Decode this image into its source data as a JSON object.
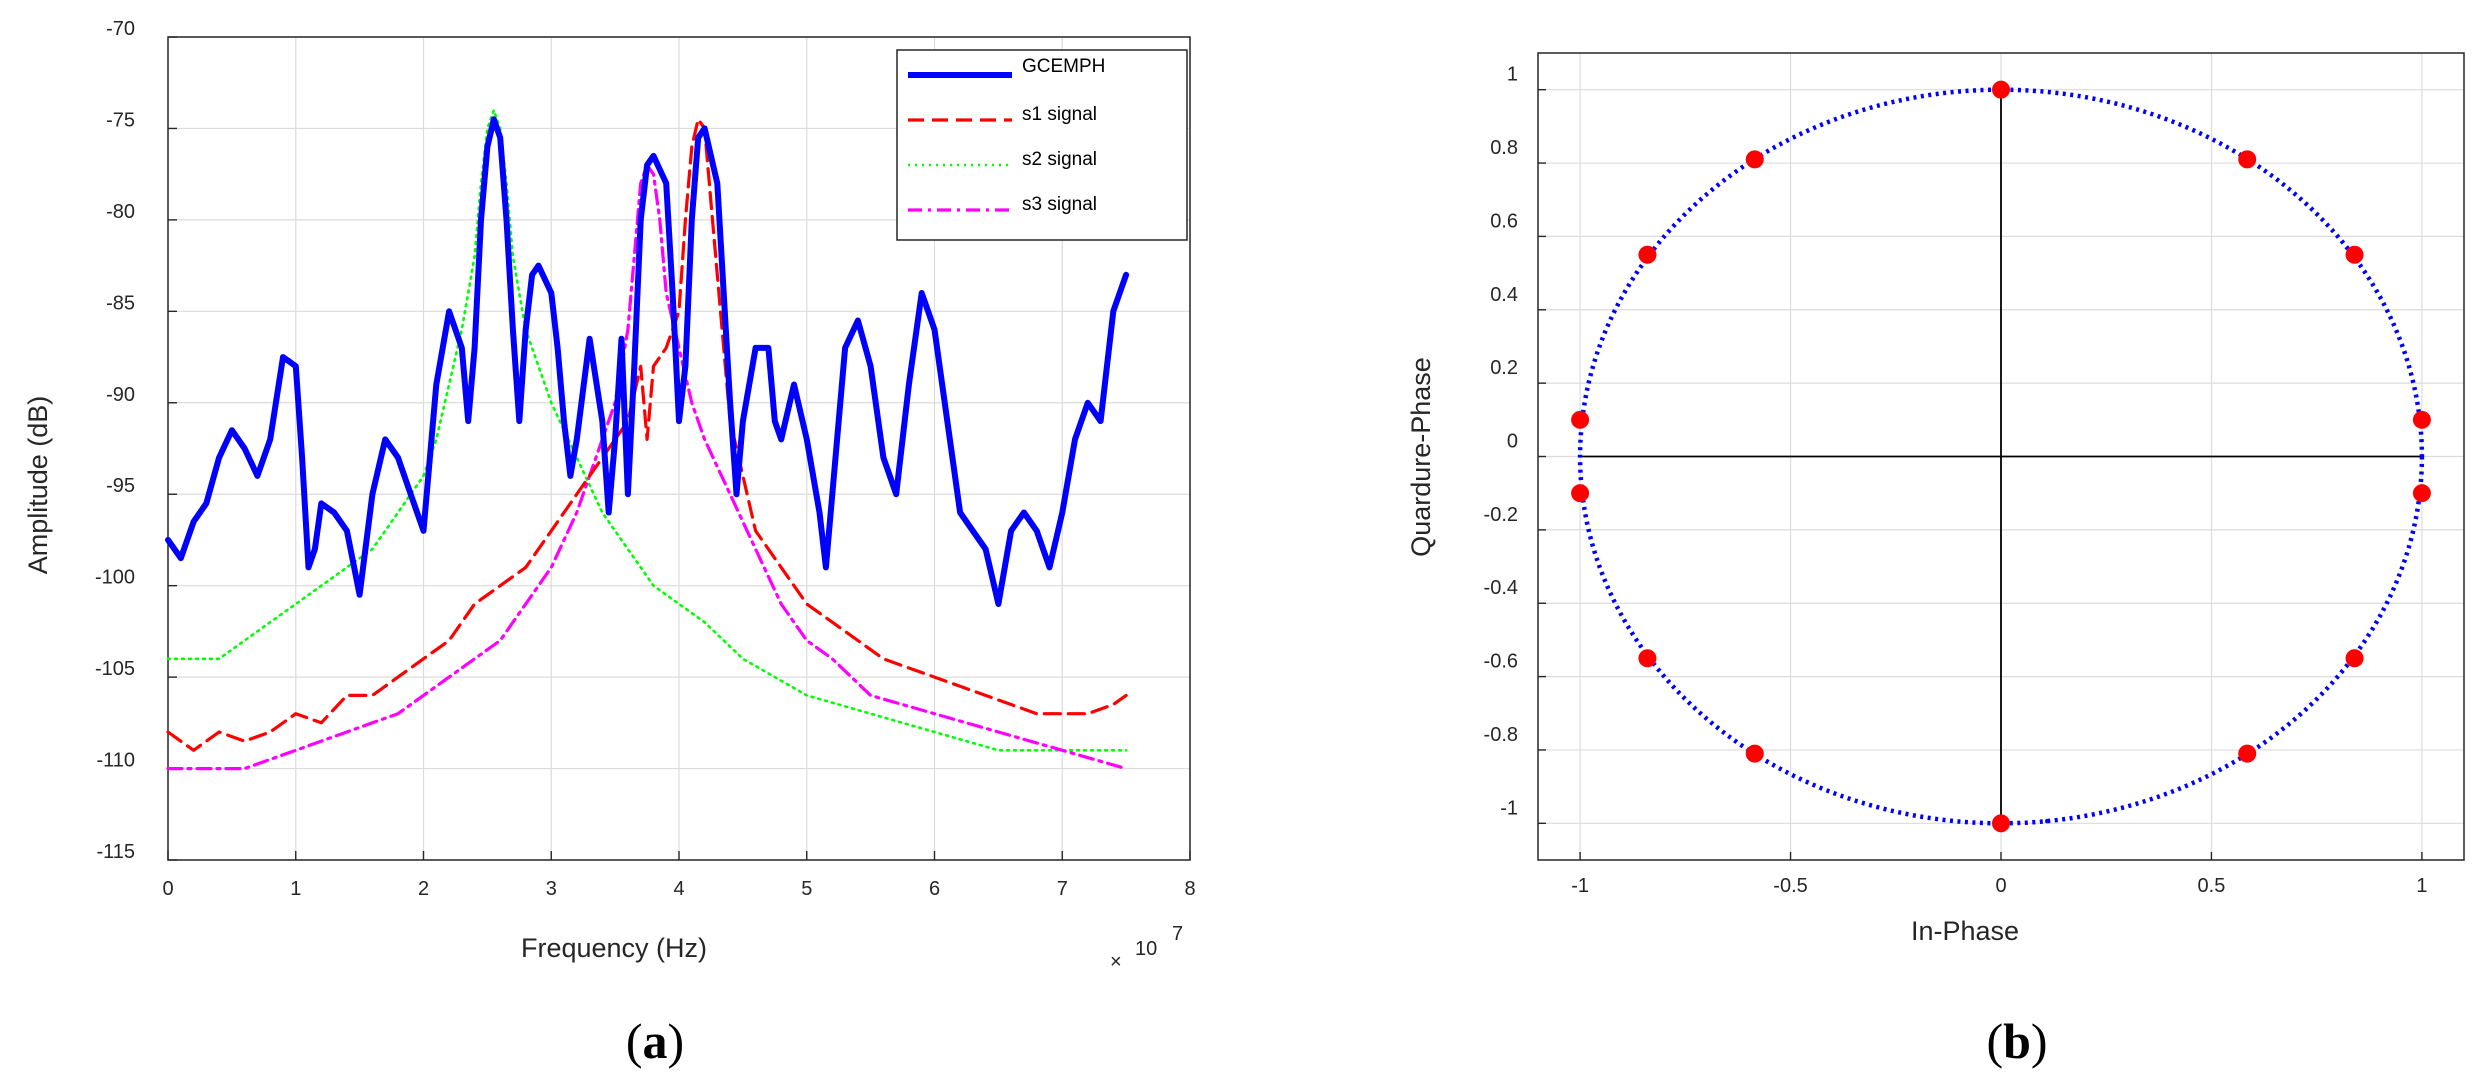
{
  "chart_data": [
    {
      "type": "line",
      "caption_label": "a",
      "xlabel": "Frequency (Hz)",
      "ylabel": "Amplitude (dB)",
      "x_multiplier_base": "10",
      "x_multiplier_exp": "7",
      "xlim": [
        0,
        8
      ],
      "ylim": [
        -115,
        -70
      ],
      "xticks": [
        "0",
        "1",
        "2",
        "3",
        "4",
        "5",
        "6",
        "7",
        "8"
      ],
      "yticks": [
        "-70",
        "-75",
        "-80",
        "-85",
        "-90",
        "-95",
        "-100",
        "-105",
        "-110",
        "-115"
      ],
      "grid": true,
      "legend_position": "top-right",
      "series": [
        {
          "name": "GCEMPH",
          "color": "#0000ff",
          "style": "solid",
          "points": [
            [
              0.0,
              -97.5
            ],
            [
              0.1,
              -98.5
            ],
            [
              0.2,
              -96.5
            ],
            [
              0.3,
              -95.5
            ],
            [
              0.4,
              -93
            ],
            [
              0.5,
              -91.5
            ],
            [
              0.6,
              -92.5
            ],
            [
              0.7,
              -94
            ],
            [
              0.8,
              -92
            ],
            [
              0.9,
              -87.5
            ],
            [
              1.0,
              -88
            ],
            [
              1.05,
              -93
            ],
            [
              1.1,
              -99
            ],
            [
              1.15,
              -98
            ],
            [
              1.2,
              -95.5
            ],
            [
              1.3,
              -96
            ],
            [
              1.4,
              -97
            ],
            [
              1.5,
              -100.5
            ],
            [
              1.6,
              -95
            ],
            [
              1.7,
              -92
            ],
            [
              1.8,
              -93
            ],
            [
              1.9,
              -95
            ],
            [
              2.0,
              -97
            ],
            [
              2.05,
              -93
            ],
            [
              2.1,
              -89
            ],
            [
              2.2,
              -85
            ],
            [
              2.3,
              -87
            ],
            [
              2.35,
              -91
            ],
            [
              2.4,
              -87
            ],
            [
              2.45,
              -80
            ],
            [
              2.5,
              -76
            ],
            [
              2.55,
              -74.5
            ],
            [
              2.6,
              -75.5
            ],
            [
              2.65,
              -80
            ],
            [
              2.7,
              -86
            ],
            [
              2.75,
              -91
            ],
            [
              2.8,
              -86
            ],
            [
              2.85,
              -83
            ],
            [
              2.9,
              -82.5
            ],
            [
              3.0,
              -84
            ],
            [
              3.05,
              -87
            ],
            [
              3.1,
              -91
            ],
            [
              3.15,
              -94
            ],
            [
              3.2,
              -92
            ],
            [
              3.3,
              -86.5
            ],
            [
              3.4,
              -91
            ],
            [
              3.45,
              -96
            ],
            [
              3.5,
              -92
            ],
            [
              3.55,
              -86.5
            ],
            [
              3.6,
              -95
            ],
            [
              3.65,
              -88
            ],
            [
              3.7,
              -80
            ],
            [
              3.75,
              -77
            ],
            [
              3.8,
              -76.5
            ],
            [
              3.9,
              -78
            ],
            [
              3.95,
              -84
            ],
            [
              4.0,
              -91
            ],
            [
              4.05,
              -88
            ],
            [
              4.1,
              -80
            ],
            [
              4.15,
              -75.5
            ],
            [
              4.2,
              -75
            ],
            [
              4.3,
              -78
            ],
            [
              4.35,
              -84
            ],
            [
              4.4,
              -90
            ],
            [
              4.45,
              -95
            ],
            [
              4.5,
              -91
            ],
            [
              4.6,
              -87
            ],
            [
              4.7,
              -87
            ],
            [
              4.75,
              -91
            ],
            [
              4.8,
              -92
            ],
            [
              4.9,
              -89
            ],
            [
              5.0,
              -92
            ],
            [
              5.1,
              -96
            ],
            [
              5.15,
              -99
            ],
            [
              5.2,
              -95
            ],
            [
              5.3,
              -87
            ],
            [
              5.4,
              -85.5
            ],
            [
              5.5,
              -88
            ],
            [
              5.6,
              -93
            ],
            [
              5.7,
              -95
            ],
            [
              5.8,
              -89
            ],
            [
              5.9,
              -84
            ],
            [
              6.0,
              -86
            ],
            [
              6.1,
              -91
            ],
            [
              6.2,
              -96
            ],
            [
              6.3,
              -97
            ],
            [
              6.4,
              -98
            ],
            [
              6.5,
              -101
            ],
            [
              6.6,
              -97
            ],
            [
              6.7,
              -96
            ],
            [
              6.8,
              -97
            ],
            [
              6.9,
              -99
            ],
            [
              7.0,
              -96
            ],
            [
              7.1,
              -92
            ],
            [
              7.2,
              -90
            ],
            [
              7.3,
              -91
            ],
            [
              7.4,
              -85
            ],
            [
              7.5,
              -83
            ]
          ]
        },
        {
          "name": "s1 signal",
          "color": "#ff0000",
          "style": "dashed",
          "points": [
            [
              0.0,
              -108
            ],
            [
              0.2,
              -109
            ],
            [
              0.4,
              -108
            ],
            [
              0.6,
              -108.5
            ],
            [
              0.8,
              -108
            ],
            [
              1.0,
              -107
            ],
            [
              1.2,
              -107.5
            ],
            [
              1.4,
              -106
            ],
            [
              1.6,
              -106
            ],
            [
              1.8,
              -105
            ],
            [
              2.0,
              -104
            ],
            [
              2.2,
              -103
            ],
            [
              2.4,
              -101
            ],
            [
              2.6,
              -100
            ],
            [
              2.8,
              -99
            ],
            [
              3.0,
              -97
            ],
            [
              3.2,
              -95
            ],
            [
              3.3,
              -94
            ],
            [
              3.5,
              -92
            ],
            [
              3.6,
              -91
            ],
            [
              3.7,
              -88
            ],
            [
              3.75,
              -92
            ],
            [
              3.8,
              -88
            ],
            [
              3.9,
              -87
            ],
            [
              4.0,
              -85
            ],
            [
              4.05,
              -80
            ],
            [
              4.1,
              -76
            ],
            [
              4.15,
              -74.5
            ],
            [
              4.2,
              -75
            ],
            [
              4.25,
              -79
            ],
            [
              4.3,
              -83
            ],
            [
              4.35,
              -87
            ],
            [
              4.4,
              -91
            ],
            [
              4.5,
              -94
            ],
            [
              4.6,
              -97
            ],
            [
              4.8,
              -99
            ],
            [
              5.0,
              -101
            ],
            [
              5.2,
              -102
            ],
            [
              5.4,
              -103
            ],
            [
              5.6,
              -104
            ],
            [
              5.8,
              -104.5
            ],
            [
              6.0,
              -105
            ],
            [
              6.2,
              -105.5
            ],
            [
              6.4,
              -106
            ],
            [
              6.6,
              -106.5
            ],
            [
              6.8,
              -107
            ],
            [
              7.0,
              -107
            ],
            [
              7.2,
              -107
            ],
            [
              7.4,
              -106.5
            ],
            [
              7.5,
              -106
            ]
          ]
        },
        {
          "name": "s2 signal",
          "color": "#00ff00",
          "style": "dotted",
          "points": [
            [
              0.0,
              -104
            ],
            [
              0.2,
              -104
            ],
            [
              0.4,
              -104
            ],
            [
              0.6,
              -103
            ],
            [
              0.8,
              -102
            ],
            [
              1.0,
              -101
            ],
            [
              1.2,
              -100
            ],
            [
              1.4,
              -99
            ],
            [
              1.6,
              -98
            ],
            [
              1.8,
              -96
            ],
            [
              2.0,
              -94
            ],
            [
              2.1,
              -92
            ],
            [
              2.2,
              -89
            ],
            [
              2.3,
              -86
            ],
            [
              2.4,
              -82
            ],
            [
              2.45,
              -78
            ],
            [
              2.5,
              -75
            ],
            [
              2.55,
              -74
            ],
            [
              2.6,
              -75
            ],
            [
              2.65,
              -78
            ],
            [
              2.7,
              -82
            ],
            [
              2.8,
              -86
            ],
            [
              2.9,
              -88
            ],
            [
              3.0,
              -90
            ],
            [
              3.2,
              -93
            ],
            [
              3.4,
              -96
            ],
            [
              3.6,
              -98
            ],
            [
              3.8,
              -100
            ],
            [
              4.0,
              -101
            ],
            [
              4.2,
              -102
            ],
            [
              4.5,
              -104
            ],
            [
              5.0,
              -106
            ],
            [
              5.5,
              -107
            ],
            [
              6.0,
              -108
            ],
            [
              6.5,
              -109
            ],
            [
              7.0,
              -109
            ],
            [
              7.5,
              -109
            ]
          ]
        },
        {
          "name": "s3 signal",
          "color": "#ff00ff",
          "style": "dashdot",
          "points": [
            [
              0.0,
              -110
            ],
            [
              0.2,
              -110
            ],
            [
              0.4,
              -110
            ],
            [
              0.6,
              -110
            ],
            [
              0.8,
              -109.5
            ],
            [
              1.0,
              -109
            ],
            [
              1.2,
              -108.5
            ],
            [
              1.4,
              -108
            ],
            [
              1.6,
              -107.5
            ],
            [
              1.8,
              -107
            ],
            [
              2.0,
              -106
            ],
            [
              2.2,
              -105
            ],
            [
              2.4,
              -104
            ],
            [
              2.6,
              -103
            ],
            [
              2.8,
              -101
            ],
            [
              3.0,
              -99
            ],
            [
              3.2,
              -96
            ],
            [
              3.4,
              -92
            ],
            [
              3.5,
              -90
            ],
            [
              3.6,
              -86
            ],
            [
              3.65,
              -82
            ],
            [
              3.7,
              -78
            ],
            [
              3.75,
              -77
            ],
            [
              3.8,
              -77.5
            ],
            [
              3.85,
              -80
            ],
            [
              3.9,
              -84
            ],
            [
              4.0,
              -87
            ],
            [
              4.1,
              -90
            ],
            [
              4.2,
              -92
            ],
            [
              4.4,
              -95
            ],
            [
              4.6,
              -98
            ],
            [
              4.8,
              -101
            ],
            [
              5.0,
              -103
            ],
            [
              5.2,
              -104
            ],
            [
              5.5,
              -106
            ],
            [
              6.0,
              -107
            ],
            [
              6.5,
              -108
            ],
            [
              7.0,
              -109
            ],
            [
              7.5,
              -110
            ]
          ]
        }
      ]
    },
    {
      "type": "scatter",
      "caption_label": "b",
      "xlabel": "In-Phase",
      "ylabel": "Quardure-Phase",
      "xlim": [
        -1.1,
        1.1
      ],
      "ylim": [
        -1.1,
        1.1
      ],
      "xticks": [
        {
          "v": -1,
          "label": "-1"
        },
        {
          "v": -0.5,
          "label": "-0.5"
        },
        {
          "v": 0,
          "label": "0"
        },
        {
          "v": 0.5,
          "label": "0.5"
        },
        {
          "v": 1,
          "label": "1"
        }
      ],
      "yticks": [
        {
          "v": 1,
          "label": "1"
        },
        {
          "v": 0.8,
          "label": "0.8"
        },
        {
          "v": 0.6,
          "label": "0.6"
        },
        {
          "v": 0.4,
          "label": "0.4"
        },
        {
          "v": 0.2,
          "label": "0.2"
        },
        {
          "v": 0,
          "label": "0"
        },
        {
          "v": -0.2,
          "label": "-0.2"
        },
        {
          "v": -0.4,
          "label": "-0.4"
        },
        {
          "v": -0.6,
          "label": "-0.6"
        },
        {
          "v": -0.8,
          "label": "-0.8"
        },
        {
          "v": -1,
          "label": "-1"
        }
      ],
      "grid": true,
      "circle": {
        "radius": 1,
        "color": "#0000ff",
        "style": "dotted"
      },
      "point_color": "#ff0000",
      "points": [
        [
          0,
          1
        ],
        [
          0.585,
          0.81
        ],
        [
          0.84,
          0.55
        ],
        [
          1,
          0.1
        ],
        [
          1,
          -0.1
        ],
        [
          0.84,
          -0.55
        ],
        [
          0.585,
          -0.81
        ],
        [
          0,
          -1
        ],
        [
          -0.585,
          -0.81
        ],
        [
          -0.84,
          -0.55
        ],
        [
          -1,
          -0.1
        ],
        [
          -1,
          0.1
        ],
        [
          -0.84,
          0.55
        ],
        [
          -0.585,
          0.81
        ]
      ]
    }
  ]
}
